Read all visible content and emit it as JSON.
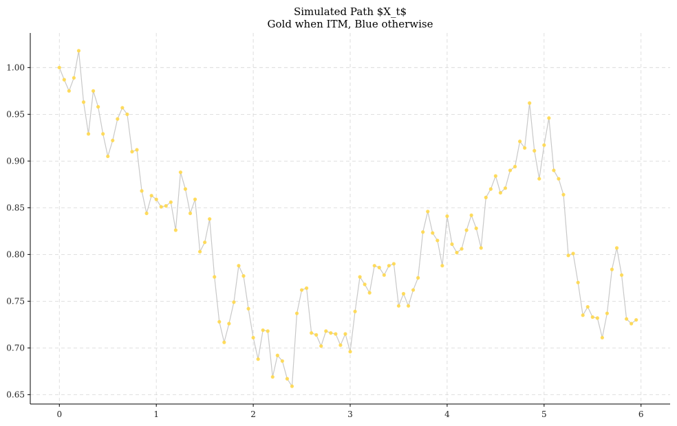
{
  "chart_data": {
    "type": "line",
    "title": "Simulated Path $X_t$",
    "subtitle": "Gold when ITM, Blue otherwise",
    "xlabel": "",
    "ylabel": "",
    "xlim": [
      -0.3,
      6.3
    ],
    "ylim": [
      0.64,
      1.037
    ],
    "grid": true,
    "x_ticks": [
      0,
      1,
      2,
      3,
      4,
      5,
      6
    ],
    "x_tick_labels": [
      "0",
      "1",
      "2",
      "3",
      "4",
      "5",
      "6"
    ],
    "y_ticks": [
      0.65,
      0.7,
      0.75,
      0.8,
      0.85,
      0.9,
      0.95,
      1.0
    ],
    "y_tick_labels": [
      "0.65",
      "0.70",
      "0.75",
      "0.80",
      "0.85",
      "0.90",
      "0.95",
      "1.00"
    ],
    "line_color": "#c8c8c8",
    "marker_color_itm": "#ffd84d",
    "marker_color_otm": "#4c72b0",
    "series": [
      {
        "x_start": 0,
        "x_step": 0.05,
        "values": [
          1.0,
          0.987,
          0.975,
          0.989,
          1.018,
          0.963,
          0.929,
          0.975,
          0.958,
          0.929,
          0.905,
          0.922,
          0.945,
          0.957,
          0.95,
          0.91,
          0.912,
          0.868,
          0.844,
          0.863,
          0.859,
          0.851,
          0.852,
          0.856,
          0.826,
          0.888,
          0.87,
          0.844,
          0.859,
          0.803,
          0.813,
          0.838,
          0.776,
          0.728,
          0.706,
          0.726,
          0.749,
          0.788,
          0.777,
          0.742,
          0.711,
          0.688,
          0.719,
          0.718,
          0.669,
          0.692,
          0.686,
          0.667,
          0.659,
          0.737,
          0.762,
          0.764,
          0.716,
          0.714,
          0.702,
          0.718,
          0.716,
          0.715,
          0.703,
          0.715,
          0.696,
          0.739,
          0.776,
          0.768,
          0.759,
          0.788,
          0.786,
          0.778,
          0.788,
          0.79,
          0.745,
          0.758,
          0.745,
          0.762,
          0.775,
          0.824,
          0.846,
          0.823,
          0.815,
          0.788,
          0.841,
          0.811,
          0.802,
          0.806,
          0.826,
          0.842,
          0.828,
          0.807,
          0.861,
          0.87,
          0.884,
          0.866,
          0.871,
          0.89,
          0.894,
          0.921,
          0.914,
          0.962,
          0.911,
          0.881,
          0.917,
          0.946,
          0.89,
          0.881,
          0.864,
          0.799,
          0.801,
          0.77,
          0.735,
          0.744,
          0.733,
          0.732,
          0.711,
          0.737,
          0.784,
          0.807,
          0.778,
          0.731,
          0.726,
          0.73
        ]
      }
    ]
  }
}
